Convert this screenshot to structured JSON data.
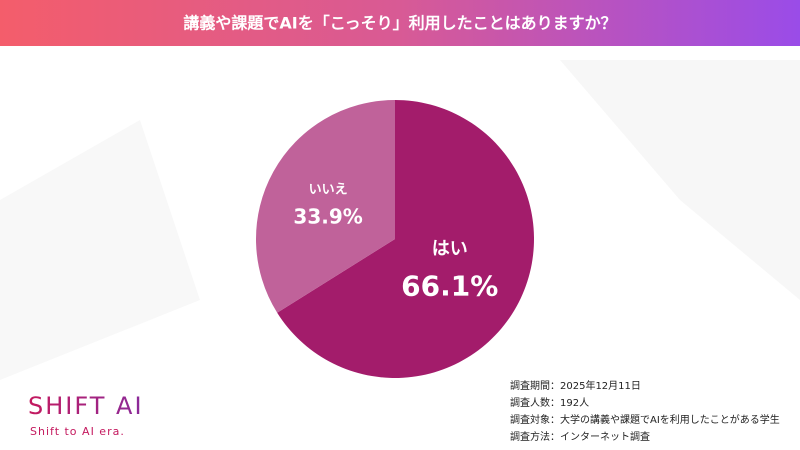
{
  "chart_data": {
    "type": "pie",
    "title": "講義や課題でAIを「こっそり」利用したことはありますか？",
    "categories": [
      "はい",
      "いいえ"
    ],
    "values": [
      66.1,
      33.9
    ],
    "value_labels": [
      "66.1%",
      "33.9%"
    ],
    "colors": [
      "#a31c6b",
      "#c0629a"
    ]
  },
  "footer": {
    "notes": [
      "調査期間：2025年12月11日",
      "調査人数：192人",
      "調査対象：大学の講義や課題でAIを利用したことがある学生",
      "調査方法：インターネット調査"
    ],
    "logo": "SHIFT AI",
    "tagline": "Shift to AI era."
  }
}
